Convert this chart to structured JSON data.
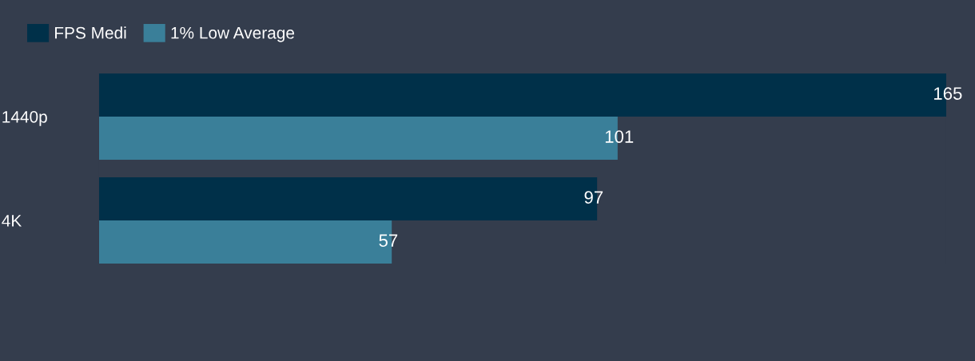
{
  "chart_data": {
    "type": "bar",
    "orientation": "horizontal",
    "categories": [
      "1440p",
      "4K"
    ],
    "series": [
      {
        "name": "FPS Medi",
        "color": "#003049",
        "values": [
          165,
          97
        ]
      },
      {
        "name": "1% Low Average",
        "color": "#3a7f99",
        "values": [
          101,
          57
        ]
      }
    ],
    "data_labels": true,
    "legend": "top left",
    "grid": false
  }
}
